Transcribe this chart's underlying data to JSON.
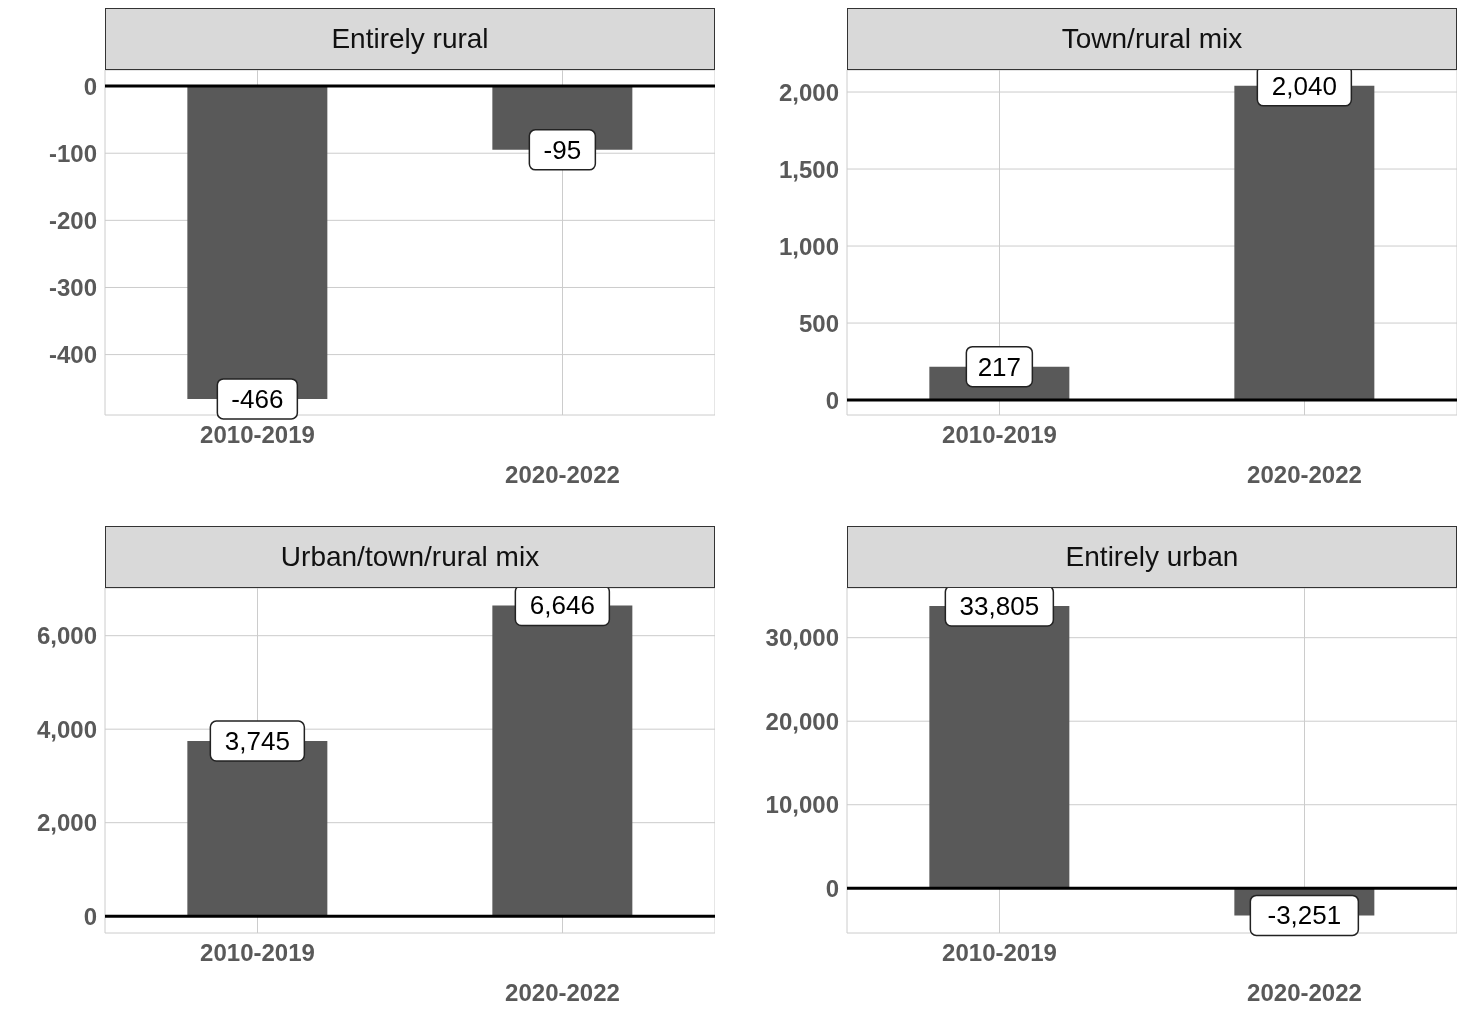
{
  "chart_data": [
    {
      "type": "bar",
      "title": "Entirely rural",
      "categories": [
        "2010-2019",
        "2020-2022"
      ],
      "values": [
        -466,
        -95
      ],
      "value_labels": [
        "-466",
        "-95"
      ],
      "color": "#595959",
      "ylim": [
        -490,
        24
      ],
      "yticks": [
        -400,
        -300,
        -200,
        -100,
        0
      ],
      "grid": true,
      "ref_lines": [
        {
          "axis": "y",
          "value": 0,
          "color": "#000000"
        }
      ]
    },
    {
      "type": "bar",
      "title": "Town/rural mix",
      "categories": [
        "2010-2019",
        "2020-2022"
      ],
      "values": [
        217,
        2040
      ],
      "value_labels": [
        "217",
        "2,040"
      ],
      "color": "#595959",
      "ylim": [
        -97,
        2143
      ],
      "yticks": [
        0,
        500,
        {
          "value": 1000,
          "label": "1,000"
        },
        {
          "value": 1500,
          "label": "1,500"
        },
        {
          "value": 2000,
          "label": "2,000"
        }
      ],
      "grid": true,
      "ref_lines": [
        {
          "axis": "y",
          "value": 0,
          "color": "#000000"
        }
      ]
    },
    {
      "type": "bar",
      "title": "Urban/town/rural mix",
      "categories": [
        "2010-2019",
        "2020-2022"
      ],
      "values": [
        3745,
        6646
      ],
      "value_labels": [
        "3,745",
        "6,646"
      ],
      "color": "#595959",
      "ylim": [
        -360,
        7020
      ],
      "yticks": [
        0,
        {
          "value": 2000,
          "label": "2,000"
        },
        {
          "value": 4000,
          "label": "4,000"
        },
        {
          "value": 6000,
          "label": "6,000"
        }
      ],
      "grid": true,
      "ref_lines": [
        {
          "axis": "y",
          "value": 0,
          "color": "#000000"
        }
      ]
    },
    {
      "type": "bar",
      "title": "Entirely urban",
      "categories": [
        "2010-2019",
        "2020-2022"
      ],
      "values": [
        33805,
        -3251
      ],
      "value_labels": [
        "33,805",
        "-3,251"
      ],
      "color": "#595959",
      "ylim": [
        -5360,
        35950
      ],
      "yticks": [
        0,
        {
          "value": 10000,
          "label": "10,000"
        },
        {
          "value": 20000,
          "label": "20,000"
        },
        {
          "value": 30000,
          "label": "30,000"
        }
      ],
      "grid": true,
      "ref_lines": [
        {
          "axis": "y",
          "value": 0,
          "color": "#000000"
        }
      ]
    }
  ]
}
